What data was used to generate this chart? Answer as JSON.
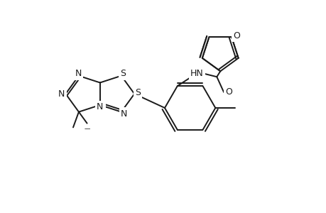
{
  "background_color": "#ffffff",
  "line_color": "#1a1a1a",
  "line_width": 1.4,
  "figure_size": [
    4.6,
    3.0
  ],
  "dpi": 100,
  "atoms": {
    "N_labels": "N",
    "S_label": "S",
    "O_label": "O",
    "HN_label": "HN",
    "methyl_label": "—"
  }
}
